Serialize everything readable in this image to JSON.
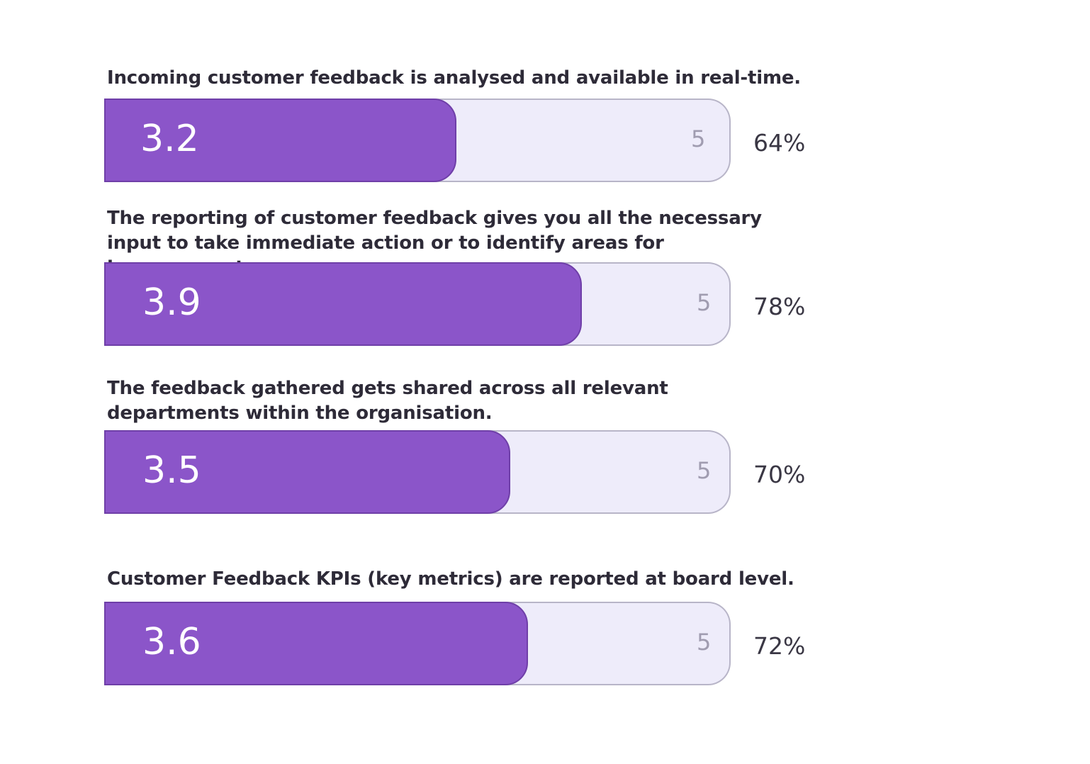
{
  "chart_data": {
    "type": "bar",
    "orientation": "horizontal",
    "scale_max": 5,
    "colors": {
      "fill": "#8b55c9",
      "track": "#eeecfa"
    },
    "items": [
      {
        "label": "Incoming customer feedback is analysed and available in real-time.",
        "value": 3.2,
        "max_label": "5",
        "value_label": "3.2",
        "percent_label": "64%"
      },
      {
        "label": "The reporting of customer feedback gives you all the necessary input to take immediate action or to identify areas for improvement.",
        "value": 3.9,
        "max_label": "5",
        "value_label": "3.9",
        "percent_label": "78%"
      },
      {
        "label": "The feedback gathered gets shared across all relevant departments within the organisation.",
        "value": 3.5,
        "max_label": "5",
        "value_label": "3.5",
        "percent_label": "70%"
      },
      {
        "label": "Customer Feedback KPIs (key metrics) are reported at board level.",
        "value": 3.6,
        "max_label": "5",
        "value_label": "3.6",
        "percent_label": "72%"
      }
    ]
  }
}
